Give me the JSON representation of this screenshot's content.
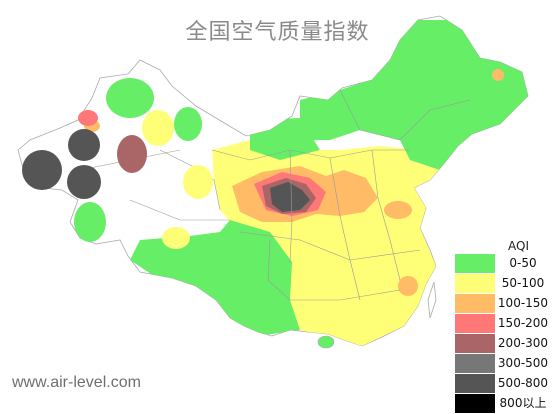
{
  "title": "全国空气质量指数",
  "watermark": "www.air-level.com",
  "legend": {
    "title": "AQI",
    "items": [
      {
        "label": "0-50",
        "color": "#66ee66"
      },
      {
        "label": "50-100",
        "color": "#ffff77"
      },
      {
        "label": "100-150",
        "color": "#ffbb66"
      },
      {
        "label": "150-200",
        "color": "#ff7777"
      },
      {
        "label": "200-300",
        "color": "#aa6666"
      },
      {
        "label": "300-500",
        "color": "#777777"
      },
      {
        "label": "500-800",
        "color": "#555555"
      },
      {
        "label": "800以上",
        "color": "#000000"
      }
    ]
  }
}
